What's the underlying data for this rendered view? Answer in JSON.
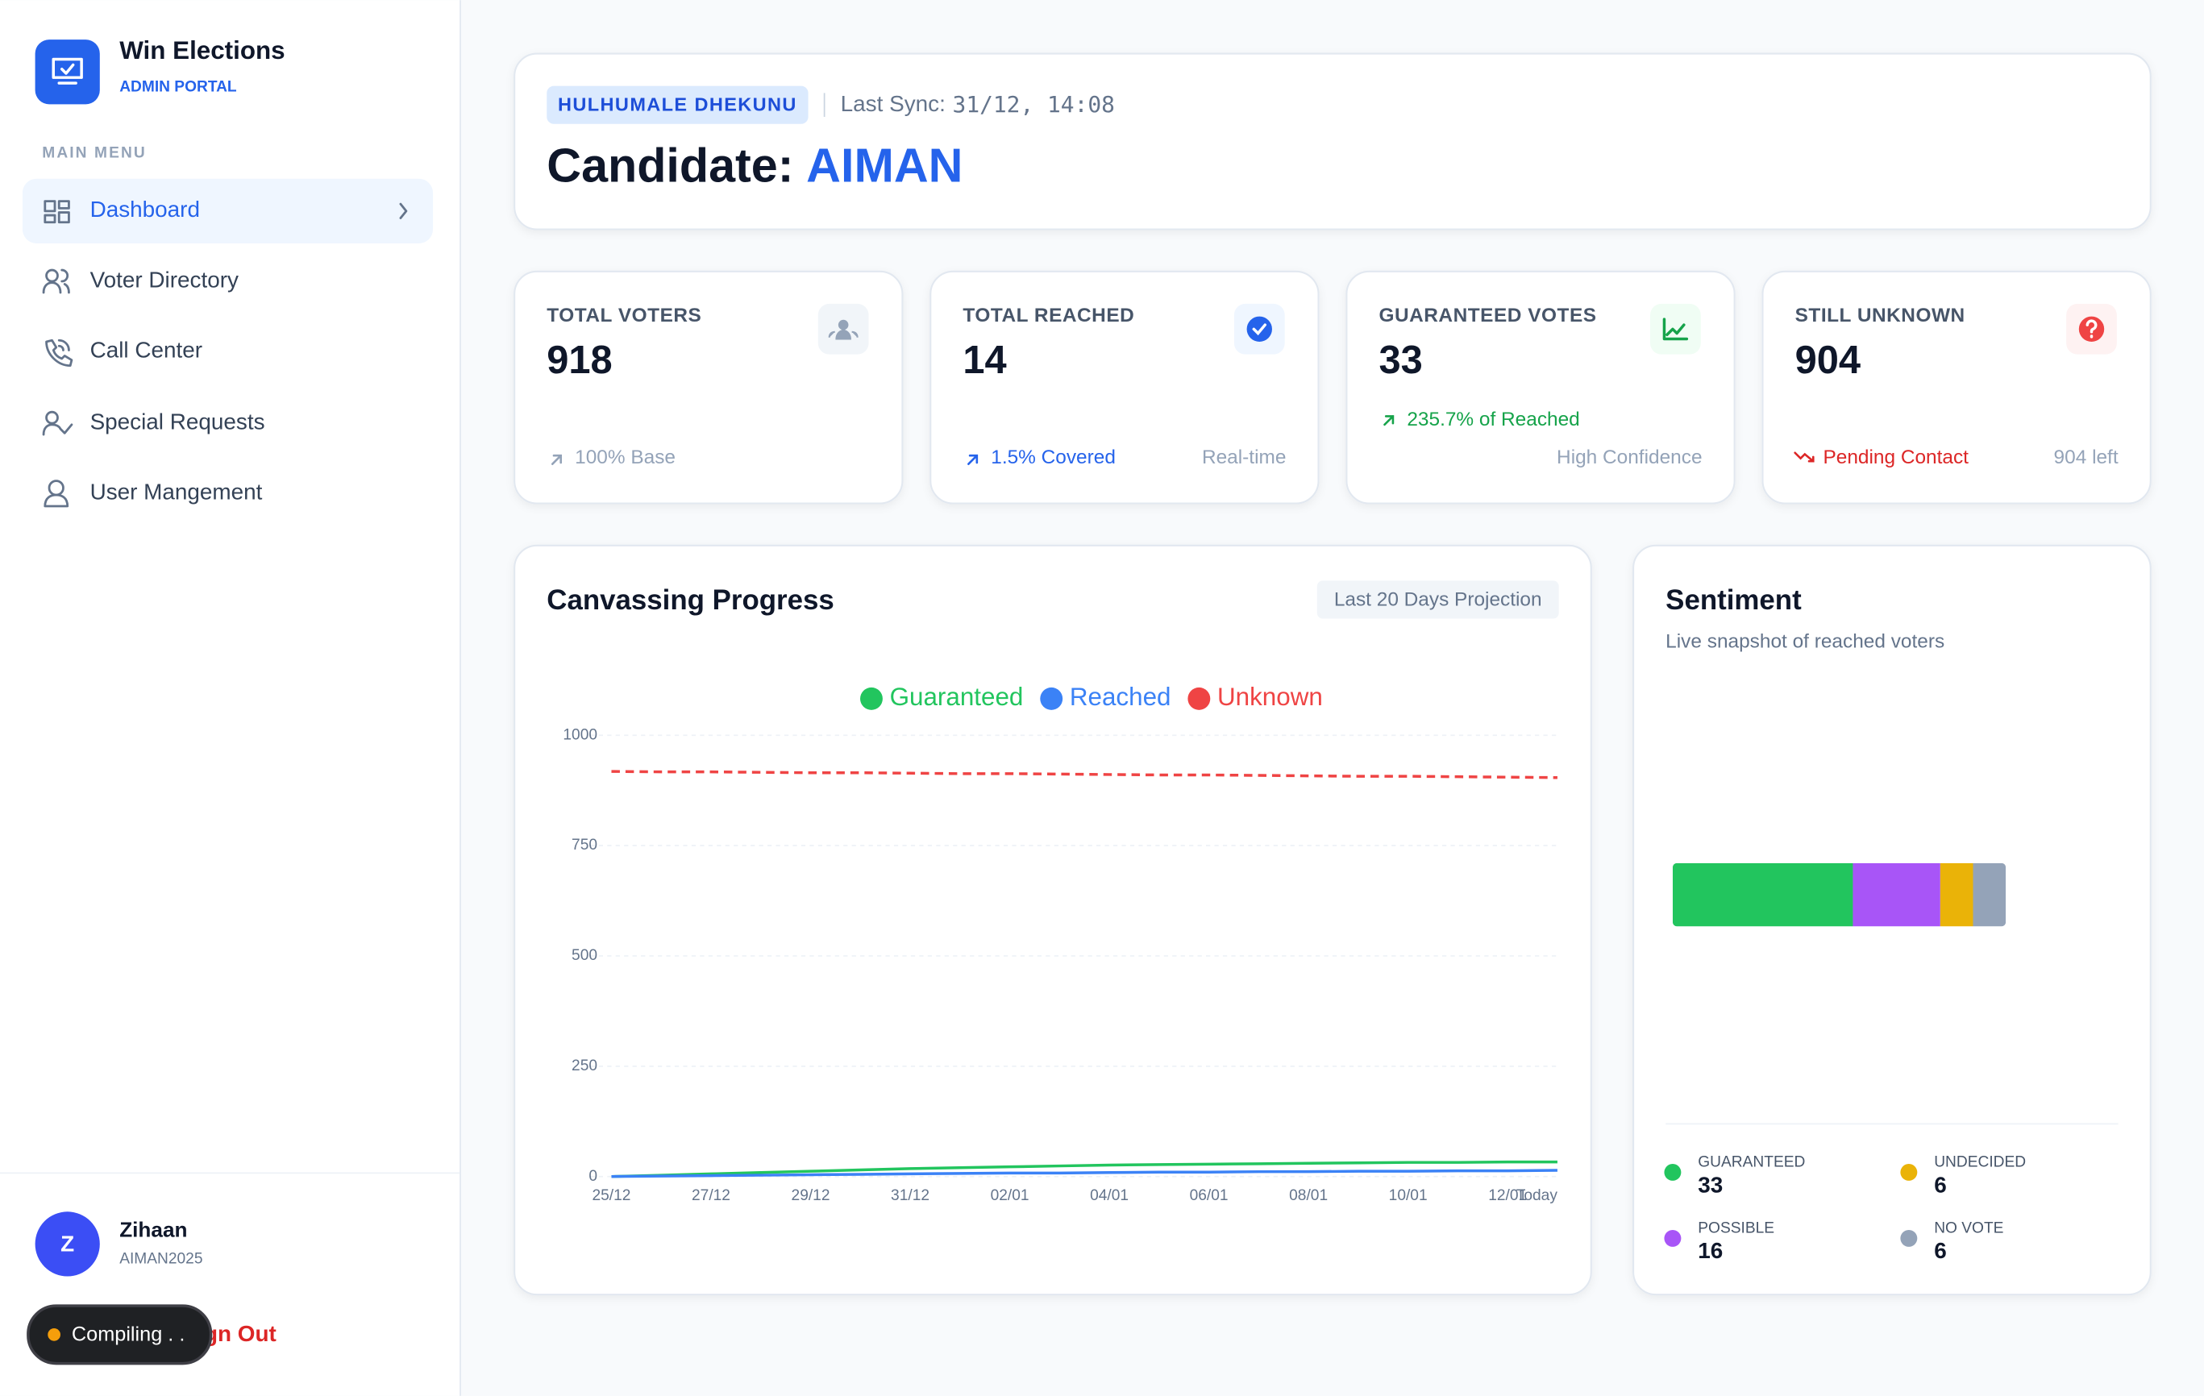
{
  "sidebar": {
    "app_name": "Win Elections",
    "portal": "ADMIN PORTAL",
    "menu_heading": "MAIN MENU",
    "menu": [
      "Dashboard",
      "Voter Directory",
      "Call Center",
      "Special Requests",
      "User Mangement"
    ],
    "user": {
      "initial": "Z",
      "name": "Zihaan",
      "id": "AIMAN2025"
    },
    "sign_out": "Sign Out",
    "toast": "Compiling . ."
  },
  "header": {
    "region": "HULHUMALE DHEKUNU",
    "sync_label": "Last Sync:",
    "sync_time": "31/12, 14:08",
    "candidate_label": "Candidate:",
    "candidate": "AIMAN"
  },
  "stats": [
    {
      "label": "TOTAL VOTERS",
      "value": 918,
      "note": "100% Base"
    },
    {
      "label": "TOTAL REACHED",
      "value": 14,
      "note": "1.5% Covered",
      "side": "Real-time"
    },
    {
      "label": "GUARANTEED VOTES",
      "value": 33,
      "trend": "235.7% of Reached",
      "side": "High Confidence"
    },
    {
      "label": "STILL UNKNOWN",
      "value": 904,
      "note": "Pending Contact",
      "side": "904 left"
    }
  ],
  "chart_data": [
    {
      "type": "line",
      "title": "Canvassing Progress",
      "badge": "Last 20 Days Projection",
      "categories": [
        "25/12",
        null,
        "27/12",
        null,
        "29/12",
        null,
        "31/12",
        null,
        "02/01",
        null,
        "04/01",
        null,
        "06/01",
        null,
        "08/01",
        null,
        "10/01",
        null,
        "12/01",
        "Today"
      ],
      "series": [
        {
          "name": "Guaranteed",
          "color": "#22c55e",
          "values": [
            0,
            3,
            6,
            9,
            12,
            15,
            18,
            20,
            22,
            24,
            26,
            27,
            28,
            29,
            30,
            31,
            32,
            32,
            33,
            33
          ]
        },
        {
          "name": "Reached",
          "color": "#3b82f6",
          "values": [
            0,
            1,
            2,
            3,
            4,
            5,
            6,
            7,
            8,
            8,
            9,
            10,
            10,
            11,
            11,
            12,
            12,
            13,
            13,
            14
          ]
        },
        {
          "name": "Unknown",
          "color": "#ef4444",
          "dash": true,
          "values": [
            918,
            917,
            917,
            916,
            915,
            915,
            914,
            913,
            913,
            912,
            911,
            910,
            910,
            909,
            908,
            907,
            907,
            906,
            905,
            904
          ]
        }
      ],
      "ylim": [
        0,
        1000
      ],
      "yticks": [
        0,
        250,
        500,
        750,
        1000
      ],
      "grid": true
    },
    {
      "type": "stacked-bar",
      "title": "Sentiment",
      "subtitle": "Live snapshot of reached voters",
      "series": [
        {
          "name": "GUARANTEED",
          "color": "#22c55e",
          "values": [
            33
          ]
        },
        {
          "name": "POSSIBLE",
          "color": "#a855f7",
          "values": [
            16
          ]
        },
        {
          "name": "UNDECIDED",
          "color": "#eab308",
          "values": [
            6
          ]
        },
        {
          "name": "NO VOTE",
          "color": "#94a3b8",
          "values": [
            6
          ]
        }
      ]
    }
  ]
}
